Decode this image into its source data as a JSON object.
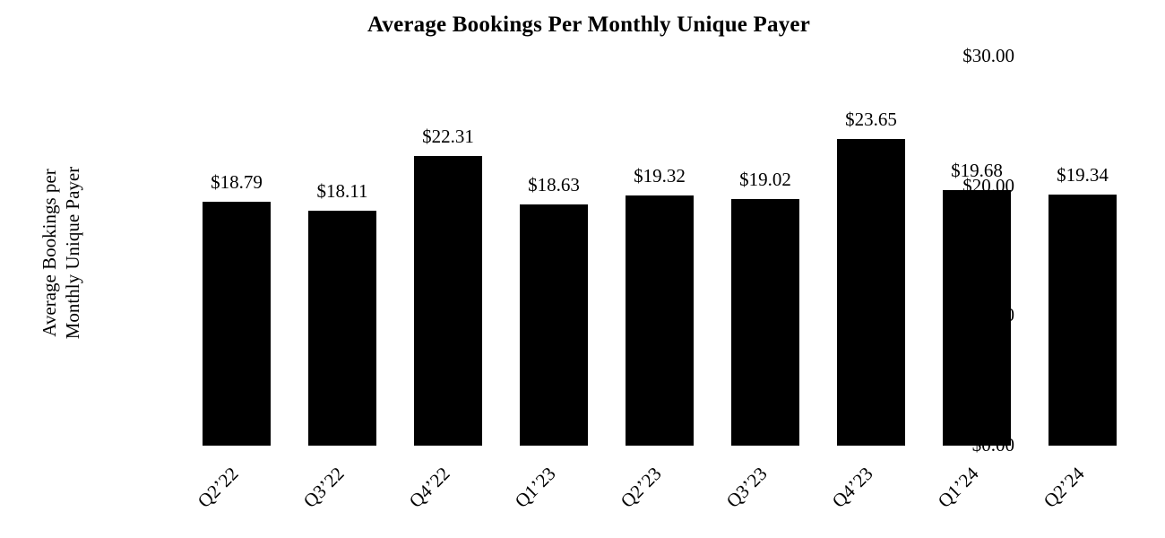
{
  "page": {
    "background_color": "#ffffff",
    "text_color": "#000000"
  },
  "chart_data": {
    "type": "bar",
    "title": "Average Bookings Per Monthly Unique Payer",
    "categories": [
      "Q2’22",
      "Q3’22",
      "Q4’22",
      "Q1’23",
      "Q2’23",
      "Q3’23",
      "Q4’23",
      "Q1’24",
      "Q2’24"
    ],
    "values": [
      18.79,
      18.11,
      22.31,
      18.63,
      19.32,
      19.02,
      23.65,
      19.68,
      19.34
    ],
    "bar_labels": [
      "$18.79",
      "$18.11",
      "$22.31",
      "$18.63",
      "$19.32",
      "$19.02",
      "$23.65",
      "$19.68",
      "$19.34"
    ],
    "xlabel": "",
    "ylabel": "Average Bookings per Monthly Unique Payer",
    "ylabel_lines": [
      "Average Bookings per",
      "Monthly Unique Payer"
    ],
    "yticks": [
      {
        "label": "$30.00",
        "value": 30
      },
      {
        "label": "$20.00",
        "value": 20
      },
      {
        "label": "$10.00",
        "value": 10
      },
      {
        "label": "$0.00",
        "value": 0
      }
    ],
    "ylim": [
      0,
      30
    ],
    "bar_color": "#000000",
    "grid": false,
    "legend_position": "none"
  }
}
